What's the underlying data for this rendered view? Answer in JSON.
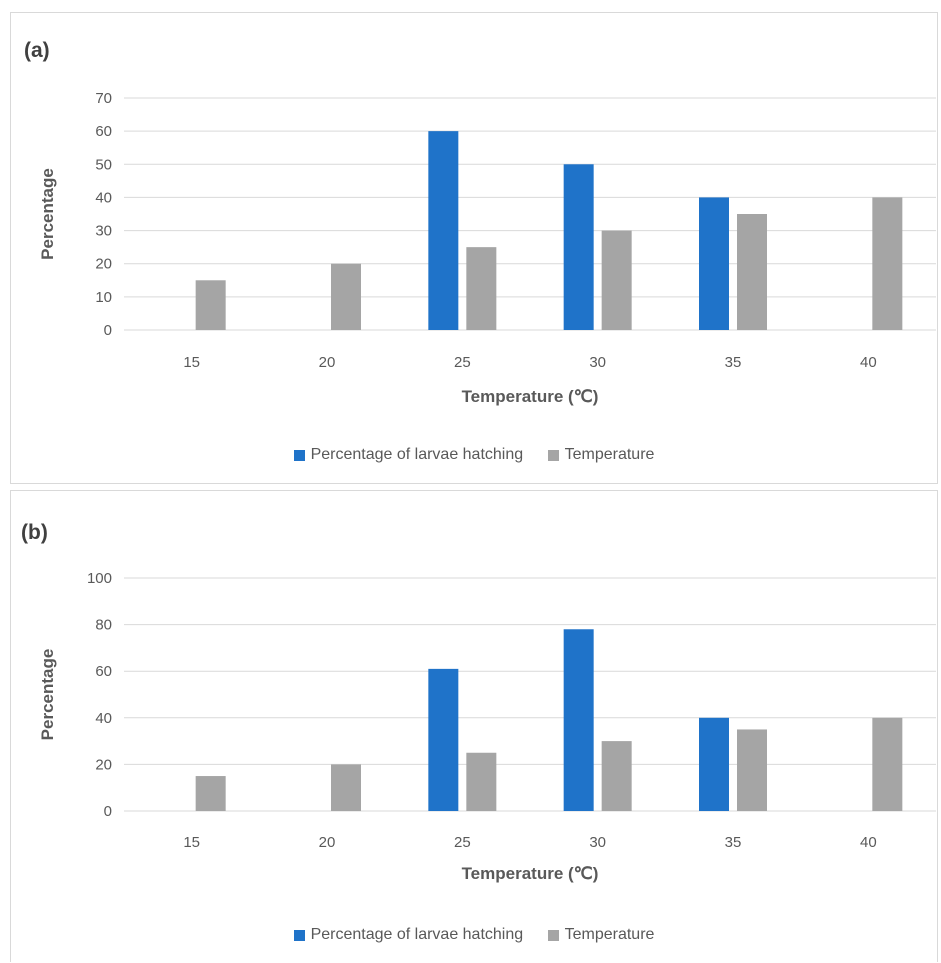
{
  "chart_data": [
    {
      "type": "bar",
      "panel_label": "(a)",
      "categories": [
        "15",
        "20",
        "25",
        "30",
        "35",
        "40"
      ],
      "series": [
        {
          "name": "Percentage of larvae hatching",
          "color": "#1F73C9",
          "values": [
            null,
            null,
            60,
            50,
            40,
            null
          ]
        },
        {
          "name": "Temperature",
          "color": "#A5A5A5",
          "values": [
            15,
            20,
            25,
            30,
            35,
            40
          ]
        }
      ],
      "xlabel": "Temperature (℃)",
      "ylabel": "Percentage",
      "ylim": [
        0,
        70
      ],
      "yticks": [
        0,
        10,
        20,
        30,
        40,
        50,
        60,
        70
      ],
      "grid": true,
      "legend": "bottom"
    },
    {
      "type": "bar",
      "panel_label": "(b)",
      "categories": [
        "15",
        "20",
        "25",
        "30",
        "35",
        "40"
      ],
      "series": [
        {
          "name": "Percentage of larvae hatching",
          "color": "#1F73C9",
          "values": [
            null,
            null,
            61,
            78,
            40,
            null
          ]
        },
        {
          "name": "Temperature",
          "color": "#A5A5A5",
          "values": [
            15,
            20,
            25,
            30,
            35,
            40
          ]
        }
      ],
      "xlabel": "Temperature (℃)",
      "ylabel": "Percentage",
      "ylim": [
        0,
        100
      ],
      "yticks": [
        0,
        20,
        40,
        60,
        80,
        100
      ],
      "grid": true,
      "legend": "bottom"
    }
  ]
}
